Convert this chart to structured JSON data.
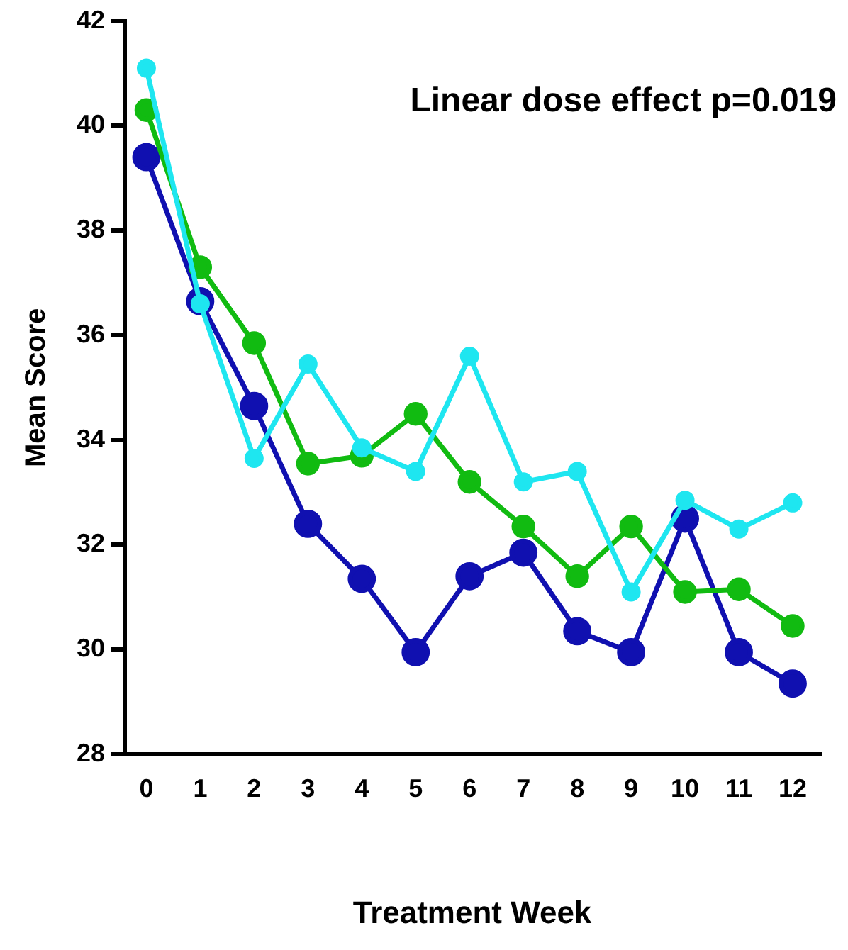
{
  "chart_data": {
    "type": "line",
    "xlabel": "Treatment Week",
    "ylabel": "Mean Score",
    "x": [
      0,
      1,
      2,
      3,
      4,
      5,
      6,
      7,
      8,
      9,
      10,
      11,
      12
    ],
    "series": [
      {
        "color": "#1ee6f0",
        "values": [
          41.1,
          36.6,
          33.65,
          35.45,
          33.85,
          33.4,
          35.6,
          33.2,
          33.4,
          31.1,
          32.85,
          32.3,
          32.8
        ]
      },
      {
        "color": "#11bb11",
        "values": [
          40.3,
          37.3,
          35.85,
          33.55,
          33.7,
          34.5,
          33.2,
          32.35,
          31.4,
          32.35,
          31.1,
          31.15,
          30.45
        ]
      },
      {
        "color": "#1010b0",
        "values": [
          39.4,
          36.65,
          34.65,
          32.4,
          31.35,
          29.95,
          31.4,
          31.85,
          30.35,
          29.95,
          32.5,
          29.95,
          29.35
        ]
      }
    ],
    "xlim": [
      -0.4,
      12.5
    ],
    "xticks": [
      0,
      1,
      2,
      3,
      4,
      5,
      6,
      7,
      8,
      9,
      10,
      11,
      12
    ],
    "ylim": [
      28,
      42
    ],
    "yticks": [
      28,
      30,
      32,
      34,
      36,
      38,
      40,
      42
    ],
    "annotations": [
      "Linear dose effect p=0.019"
    ],
    "grid": false,
    "legend": false,
    "marker": "circle",
    "line_style": "solid"
  }
}
